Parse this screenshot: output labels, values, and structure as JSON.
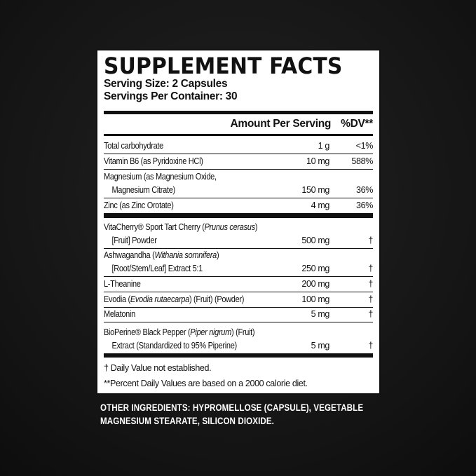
{
  "title": "SUPPLEMENT FACTS",
  "serving_size": "Serving Size: 2 Capsules",
  "servings_per_container": "Servings Per Container: 30",
  "header": {
    "amount": "Amount Per Serving",
    "dv": "%DV**"
  },
  "rows_a": [
    {
      "line1": "Total carbohydrate",
      "line2": "",
      "amount": "1 g",
      "dv": "<1%"
    },
    {
      "line1": "Vitamin B6 (as Pyridoxine HCl)",
      "line2": "",
      "amount": "10 mg",
      "dv": "588%"
    },
    {
      "line1": "Magnesium (as Magnesium Oxide,",
      "line2": "Magnesium Citrate)",
      "amount": "150 mg",
      "dv": "36%"
    },
    {
      "line1": "Zinc (as Zinc Orotate)",
      "line2": "",
      "amount": "4 mg",
      "dv": "36%"
    }
  ],
  "rows_b": [
    {
      "pre": "VitaCherry® Sport Tart Cherry (",
      "ital": "Prunus cerasus",
      "post": ")",
      "line2": "[Fruit] Powder",
      "amount": "500 mg",
      "dv": "†"
    },
    {
      "pre": "Ashwagandha (",
      "ital": "Withania somnifera",
      "post": ")",
      "line2": "[Root/Stem/Leaf] Extract 5:1",
      "amount": "250 mg",
      "dv": "†"
    },
    {
      "pre": "L-Theanine",
      "ital": "",
      "post": "",
      "line2": "",
      "amount": "200 mg",
      "dv": "†"
    },
    {
      "pre": "Evodia (",
      "ital": "Evodia rutaecarpa",
      "post": ") (Fruit) (Powder)",
      "line2": "",
      "amount": "100 mg",
      "dv": "†"
    },
    {
      "pre": "Melatonin",
      "ital": "",
      "post": "",
      "line2": "",
      "amount": "5 mg",
      "dv": "†"
    },
    {
      "pre": "BioPerine® Black Pepper (",
      "ital": "Piper nigrum",
      "post": ") (Fruit)",
      "line2": "Extract (Standardized to 95% Piperine)",
      "amount": "5 mg",
      "dv": "†"
    }
  ],
  "footnotes": [
    "† Daily Value not established.",
    "**Percent Daily Values are based on a 2000 calorie diet."
  ],
  "other_ingredients": {
    "line1": "OTHER INGREDIENTS: HYPROMELLOSE (CAPSULE), VEGETABLE",
    "line2": "MAGNESIUM STEARATE, SILICON DIOXIDE."
  }
}
